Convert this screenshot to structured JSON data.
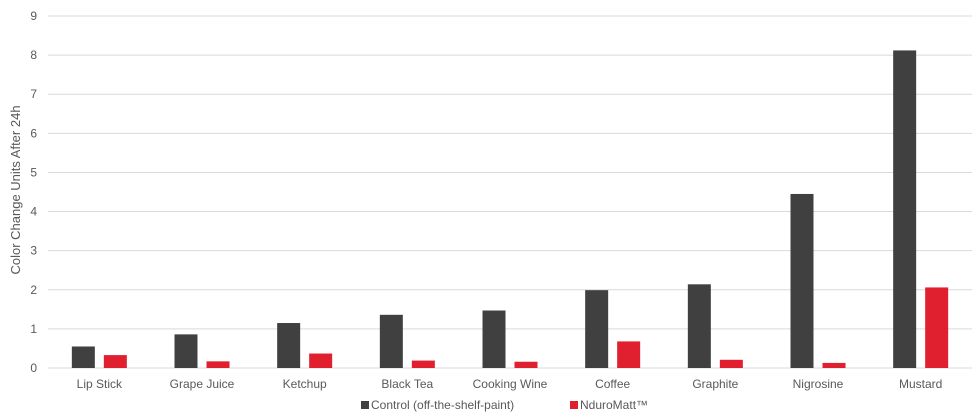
{
  "chart_data": {
    "type": "bar",
    "title": "",
    "xlabel": "",
    "ylabel": "Color Change Units After 24h",
    "ylim": [
      0,
      9
    ],
    "yticks": [
      "0",
      "1",
      "2",
      "3",
      "4",
      "5",
      "6",
      "7",
      "8",
      "9"
    ],
    "grid": true,
    "legend_position": "bottom",
    "categories": [
      "Lip Stick",
      "Grape Juice",
      "Ketchup",
      "Black Tea",
      "Cooking Wine",
      "Coffee",
      "Graphite",
      "Nigrosine",
      "Mustard"
    ],
    "series": [
      {
        "name": "Control (off-the-shelf-paint)",
        "color": "#404040",
        "values": [
          0.55,
          0.86,
          1.15,
          1.36,
          1.47,
          1.99,
          2.14,
          4.45,
          8.12
        ]
      },
      {
        "name": "NduroMatt™",
        "color": "#e0202e",
        "values": [
          0.33,
          0.17,
          0.37,
          0.19,
          0.16,
          0.68,
          0.21,
          0.13,
          2.06
        ]
      }
    ]
  }
}
